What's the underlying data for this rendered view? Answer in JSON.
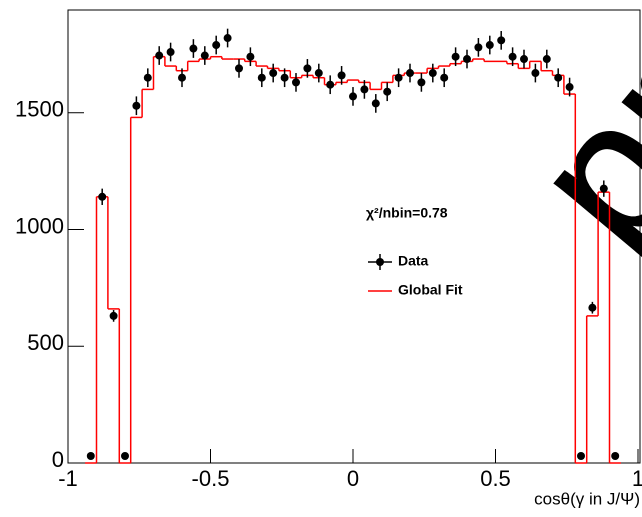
{
  "chart_data": {
    "type": "histogram",
    "x_label": "cosθ(γ in J/Ψ)",
    "annotation": "χ²/nbin=0.78",
    "watermark": "preliminary",
    "xlim": [
      -1,
      1
    ],
    "xticks": [
      -1,
      -0.5,
      0,
      0.5,
      1
    ],
    "ylim": [
      0,
      1940
    ],
    "yticks": [
      0,
      500,
      1000,
      1500
    ],
    "x": [
      -0.92,
      -0.88,
      -0.84,
      -0.8,
      -0.76,
      -0.72,
      -0.68,
      -0.64,
      -0.6,
      -0.56,
      -0.52,
      -0.48,
      -0.44,
      -0.4,
      -0.36,
      -0.32,
      -0.28,
      -0.24,
      -0.2,
      -0.16,
      -0.12,
      -0.08,
      -0.04,
      0,
      0.04,
      0.08,
      0.12,
      0.16,
      0.2,
      0.24,
      0.28,
      0.32,
      0.36,
      0.4,
      0.44,
      0.48,
      0.52,
      0.56,
      0.6,
      0.64,
      0.68,
      0.72,
      0.76,
      0.8,
      0.84,
      0.88,
      0.92
    ],
    "bins": [
      -0.94,
      -0.9,
      -0.86,
      -0.82,
      -0.78,
      -0.74,
      -0.7,
      -0.66,
      -0.62,
      -0.58,
      -0.54,
      -0.5,
      -0.46,
      -0.42,
      -0.38,
      -0.34,
      -0.3,
      -0.26,
      -0.22,
      -0.18,
      -0.14,
      -0.1,
      -0.06,
      -0.02,
      0.02,
      0.06,
      0.1,
      0.14,
      0.18,
      0.22,
      0.26,
      0.3,
      0.34,
      0.38,
      0.42,
      0.46,
      0.5,
      0.54,
      0.58,
      0.62,
      0.66,
      0.7,
      0.74,
      0.78,
      0.82,
      0.86,
      0.9,
      0.94
    ],
    "series": [
      {
        "name": "Data",
        "color": "#000000",
        "values": [
          30,
          1140,
          630,
          30,
          1530,
          1650,
          1745,
          1760,
          1650,
          1775,
          1745,
          1790,
          1820,
          1690,
          1740,
          1650,
          1670,
          1650,
          1630,
          1690,
          1670,
          1620,
          1660,
          1570,
          1600,
          1540,
          1590,
          1650,
          1670,
          1630,
          1670,
          1650,
          1740,
          1730,
          1780,
          1790,
          1810,
          1740,
          1730,
          1670,
          1730,
          1650,
          1610,
          30,
          665,
          1175,
          30
        ],
        "errors": [
          8,
          35,
          25,
          8,
          40,
          40,
          40,
          40,
          40,
          40,
          40,
          40,
          40,
          40,
          40,
          40,
          40,
          40,
          40,
          40,
          40,
          40,
          40,
          40,
          40,
          40,
          40,
          40,
          40,
          40,
          40,
          40,
          40,
          40,
          40,
          40,
          40,
          40,
          40,
          40,
          40,
          40,
          40,
          8,
          25,
          35,
          8
        ]
      },
      {
        "name": "Global Fit",
        "color": "#ff0000",
        "values": [
          0,
          1140,
          660,
          0,
          1480,
          1600,
          1740,
          1700,
          1680,
          1720,
          1730,
          1740,
          1730,
          1730,
          1720,
          1700,
          1690,
          1680,
          1650,
          1660,
          1650,
          1620,
          1630,
          1640,
          1630,
          1600,
          1630,
          1660,
          1670,
          1670,
          1690,
          1700,
          1710,
          1720,
          1730,
          1720,
          1720,
          1710,
          1690,
          1720,
          1680,
          1660,
          1580,
          0,
          630,
          1160,
          0
        ]
      }
    ]
  }
}
